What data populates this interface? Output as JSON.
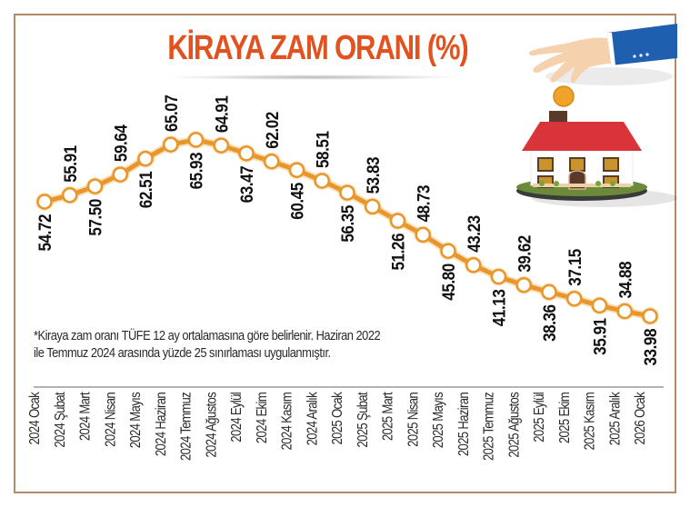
{
  "title": "KİRAYA ZAM ORANI  (%)",
  "note": {
    "line1": "*Kiraya zam oranı TÜFE 12 ay ortalamasına göre belirlenir. Haziran 2022",
    "line2": "ile Temmuz 2024 arasında yüzde 25 sınırlaması uygulanmıştır."
  },
  "colors": {
    "title": "#e2521f",
    "line": "#e8962a",
    "marker_fill": "#ffffff",
    "frame": "#b58a66",
    "axis": "#9a9a9a"
  },
  "illustration": {
    "name": "hand-dropping-coin-into-house",
    "elements": [
      "hand-icon",
      "coin-icon",
      "house-icon"
    ]
  },
  "chart_data": {
    "type": "line",
    "title": "KİRAYA ZAM ORANI (%)",
    "xlabel": "",
    "ylabel": "%",
    "grid": false,
    "legend": null,
    "label_placement": "alternating below/above points",
    "categories": [
      "2024 Ocak",
      "2024 Şubat",
      "2024 Mart",
      "2024 Nisan",
      "2024 Mayıs",
      "2024 Haziran",
      "2024 Temmuz",
      "2024 Ağustos",
      "2024 Eylül",
      "2024 Ekim",
      "2024 Kasım",
      "2024 Aralık",
      "2025 Ocak",
      "2025 Şubat",
      "2025 Mart",
      "2025 Nisan",
      "2025 Mayıs",
      "2025 Haziran",
      "2025 Temmuz",
      "2025 Ağustos",
      "2025 Eylül",
      "2025 Ekim",
      "2025 Kasım",
      "2025 Aralık",
      "2026 Ocak"
    ],
    "values": [
      54.72,
      55.91,
      57.5,
      59.64,
      62.51,
      65.07,
      65.93,
      64.91,
      63.47,
      62.02,
      60.45,
      58.51,
      56.35,
      53.83,
      51.26,
      48.73,
      45.8,
      43.23,
      41.13,
      39.62,
      38.36,
      37.15,
      35.91,
      34.88,
      33.98
    ],
    "value_labels": [
      "54.72",
      "55.91",
      "57.50",
      "59.64",
      "62.51",
      "65.07",
      "65.93",
      "64.91",
      "63.47",
      "62.02",
      "60.45",
      "58.51",
      "56.35",
      "53.83",
      "51.26",
      "48.73",
      "45.80",
      "43.23",
      "41.13",
      "39.62",
      "38.36",
      "37.15",
      "35.91",
      "34.88",
      "33.98"
    ]
  }
}
